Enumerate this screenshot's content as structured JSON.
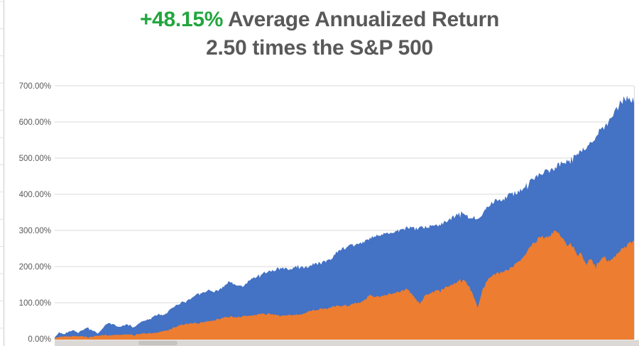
{
  "title": {
    "highlight": "+48.15%",
    "line1_rest": " Average Annualized Return",
    "line2": "2.50 times the S&P 500"
  },
  "colors": {
    "accent_green": "#22A63E",
    "title_gray": "#595959",
    "series_blue": "#4472C4",
    "series_orange": "#ED7D31",
    "gridline": "#D9D9D9",
    "axis_label": "#595959",
    "edge_line": "#C9C9C9",
    "scrollbar_track": "#DBD8D5",
    "scrollbar_thumb": "#C6C3C0"
  },
  "chart_data": {
    "type": "area",
    "title": "+48.15% Average Annualized Return — 2.50 times the S&P 500",
    "legend": "none",
    "grid": "horizontal",
    "x_axis": {
      "tick_labels_visible": false,
      "unit": "percent of chart width (0-100); time labels cropped out"
    },
    "y_axis": {
      "min": 0,
      "max": 700,
      "tick_step": 100,
      "unit": "%",
      "tick_labels": [
        "0.00%",
        "100.00%",
        "200.00%",
        "300.00%",
        "400.00%",
        "500.00%",
        "600.00%",
        "700.00%"
      ]
    },
    "series": [
      {
        "name": "blue-area",
        "color": "#4472C4",
        "points": [
          [
            0,
            3
          ],
          [
            0.7,
            18
          ],
          [
            1.6,
            13
          ],
          [
            2.5,
            22
          ],
          [
            3.3,
            25
          ],
          [
            4,
            17
          ],
          [
            4.9,
            26
          ],
          [
            5.8,
            30
          ],
          [
            6.6,
            23
          ],
          [
            7.5,
            15
          ],
          [
            8.3,
            30
          ],
          [
            9.2,
            44
          ],
          [
            10.2,
            39
          ],
          [
            11.2,
            33
          ],
          [
            12,
            38
          ],
          [
            12.9,
            40
          ],
          [
            13.7,
            32
          ],
          [
            14.6,
            44
          ],
          [
            15.4,
            50
          ],
          [
            16.3,
            55
          ],
          [
            17.2,
            63
          ],
          [
            18,
            68
          ],
          [
            18.9,
            64
          ],
          [
            19.7,
            78
          ],
          [
            20.6,
            88
          ],
          [
            21.4,
            97
          ],
          [
            22.4,
            104
          ],
          [
            23.4,
            110
          ],
          [
            24.5,
            124
          ],
          [
            25.5,
            130
          ],
          [
            26.5,
            134
          ],
          [
            27.3,
            131
          ],
          [
            28.3,
            136
          ],
          [
            29.3,
            144
          ],
          [
            30,
            158
          ],
          [
            30.8,
            152
          ],
          [
            31.6,
            148
          ],
          [
            32.6,
            145
          ],
          [
            33.5,
            160
          ],
          [
            34.3,
            169
          ],
          [
            35.2,
            176
          ],
          [
            36,
            182
          ],
          [
            36.9,
            187
          ],
          [
            37.7,
            190
          ],
          [
            38.6,
            194
          ],
          [
            39.5,
            196
          ],
          [
            40.3,
            192
          ],
          [
            41.2,
            196
          ],
          [
            42,
            201
          ],
          [
            42.9,
            197
          ],
          [
            43.8,
            200
          ],
          [
            44.6,
            207
          ],
          [
            45.5,
            210
          ],
          [
            46.3,
            212
          ],
          [
            47.2,
            219
          ],
          [
            48,
            227
          ],
          [
            48.9,
            244
          ],
          [
            49.8,
            251
          ],
          [
            50.6,
            255
          ],
          [
            51.5,
            258
          ],
          [
            52.3,
            263
          ],
          [
            53.2,
            267
          ],
          [
            54,
            276
          ],
          [
            54.9,
            281
          ],
          [
            55.8,
            284
          ],
          [
            56.6,
            286
          ],
          [
            57.5,
            294
          ],
          [
            58.3,
            298
          ],
          [
            59.2,
            300
          ],
          [
            60,
            303
          ],
          [
            60.9,
            307
          ],
          [
            61.8,
            305
          ],
          [
            62.6,
            303
          ],
          [
            63.5,
            307
          ],
          [
            64.3,
            309
          ],
          [
            65.2,
            313
          ],
          [
            66.1,
            316
          ],
          [
            66.9,
            321
          ],
          [
            67.8,
            326
          ],
          [
            68.6,
            334
          ],
          [
            69.5,
            342
          ],
          [
            70.2,
            349
          ],
          [
            71,
            341
          ],
          [
            71.7,
            333
          ],
          [
            72.3,
            337
          ],
          [
            72.8,
            331
          ],
          [
            73,
            329
          ],
          [
            73.5,
            342
          ],
          [
            74.5,
            362
          ],
          [
            75.2,
            372
          ],
          [
            76,
            385
          ],
          [
            76.7,
            387
          ],
          [
            77.5,
            388
          ],
          [
            78.2,
            395
          ],
          [
            78.9,
            400
          ],
          [
            79.7,
            405
          ],
          [
            80.4,
            413
          ],
          [
            81.1,
            421
          ],
          [
            81.9,
            430
          ],
          [
            82.7,
            445
          ],
          [
            83.5,
            455
          ],
          [
            84.2,
            460
          ],
          [
            84.9,
            470
          ],
          [
            85.5,
            465
          ],
          [
            86.2,
            470
          ],
          [
            86.9,
            480
          ],
          [
            87.6,
            487
          ],
          [
            88.4,
            492
          ],
          [
            89.1,
            500
          ],
          [
            89.8,
            505
          ],
          [
            90.6,
            515
          ],
          [
            91.3,
            522
          ],
          [
            92,
            532
          ],
          [
            92.8,
            545
          ],
          [
            93.5,
            568
          ],
          [
            94.2,
            575
          ],
          [
            95,
            585
          ],
          [
            95.7,
            600
          ],
          [
            96.4,
            618
          ],
          [
            97.2,
            640
          ],
          [
            97.8,
            658
          ],
          [
            98.4,
            662
          ],
          [
            99,
            666
          ],
          [
            99.5,
            660
          ],
          [
            100,
            656
          ]
        ]
      },
      {
        "name": "orange-area",
        "color": "#ED7D31",
        "points": [
          [
            0,
            2
          ],
          [
            1,
            6
          ],
          [
            2,
            8
          ],
          [
            2.9,
            7
          ],
          [
            3.9,
            9
          ],
          [
            4.9,
            7
          ],
          [
            5.9,
            5
          ],
          [
            6.9,
            7
          ],
          [
            7.8,
            9
          ],
          [
            8.9,
            11
          ],
          [
            9.9,
            10
          ],
          [
            10.9,
            12
          ],
          [
            11.9,
            11
          ],
          [
            12.9,
            13
          ],
          [
            13.8,
            12
          ],
          [
            14.8,
            14
          ],
          [
            15.8,
            15
          ],
          [
            16.8,
            16
          ],
          [
            17.8,
            18
          ],
          [
            18.8,
            21
          ],
          [
            19.7,
            25
          ],
          [
            20.7,
            32
          ],
          [
            21.7,
            38
          ],
          [
            22.7,
            41
          ],
          [
            23.7,
            43
          ],
          [
            24.6,
            43
          ],
          [
            25.6,
            46
          ],
          [
            26.6,
            50
          ],
          [
            27.6,
            52
          ],
          [
            28.6,
            56
          ],
          [
            29.5,
            60
          ],
          [
            30.5,
            62
          ],
          [
            31.5,
            60
          ],
          [
            32.5,
            62
          ],
          [
            33.5,
            64
          ],
          [
            34.4,
            66
          ],
          [
            35.4,
            69
          ],
          [
            36.4,
            68
          ],
          [
            37.4,
            69
          ],
          [
            38.4,
            66
          ],
          [
            39.3,
            64
          ],
          [
            40.3,
            65
          ],
          [
            41.3,
            66
          ],
          [
            42.3,
            67
          ],
          [
            43.3,
            74
          ],
          [
            44.2,
            77
          ],
          [
            45.2,
            81
          ],
          [
            46.2,
            84
          ],
          [
            47.2,
            87
          ],
          [
            48.2,
            89
          ],
          [
            49.1,
            91
          ],
          [
            50.1,
            93
          ],
          [
            51.1,
            95
          ],
          [
            52.1,
            98
          ],
          [
            53.1,
            102
          ],
          [
            53.8,
            112
          ],
          [
            54.4,
            122
          ],
          [
            55,
            115
          ],
          [
            55.8,
            117
          ],
          [
            56.5,
            120
          ],
          [
            57.2,
            123
          ],
          [
            58,
            126
          ],
          [
            58.7,
            128
          ],
          [
            59.4,
            130
          ],
          [
            60.2,
            134
          ],
          [
            60.9,
            137
          ],
          [
            61.6,
            125
          ],
          [
            62.4,
            108
          ],
          [
            63,
            97
          ],
          [
            63.6,
            112
          ],
          [
            64.2,
            124
          ],
          [
            65,
            128
          ],
          [
            65.7,
            131
          ],
          [
            66.4,
            135
          ],
          [
            67.2,
            140
          ],
          [
            67.9,
            145
          ],
          [
            68.6,
            150
          ],
          [
            69.4,
            158
          ],
          [
            70.1,
            164
          ],
          [
            70.8,
            160
          ],
          [
            71.6,
            145
          ],
          [
            72.2,
            120
          ],
          [
            72.7,
            100
          ],
          [
            73,
            88
          ],
          [
            73.4,
            110
          ],
          [
            73.9,
            140
          ],
          [
            74.5,
            158
          ],
          [
            75.1,
            172
          ],
          [
            75.9,
            178
          ],
          [
            76.6,
            182
          ],
          [
            77.3,
            185
          ],
          [
            78.1,
            190
          ],
          [
            78.8,
            198
          ],
          [
            79.5,
            208
          ],
          [
            80.3,
            218
          ],
          [
            81,
            228
          ],
          [
            81.7,
            250
          ],
          [
            82.5,
            262
          ],
          [
            83.2,
            275
          ],
          [
            83.9,
            286
          ],
          [
            84.7,
            277
          ],
          [
            85.3,
            282
          ],
          [
            85.9,
            292
          ],
          [
            86.5,
            300
          ],
          [
            87.1,
            288
          ],
          [
            87.7,
            277
          ],
          [
            88.4,
            258
          ],
          [
            89,
            262
          ],
          [
            89.6,
            256
          ],
          [
            90.2,
            230
          ],
          [
            90.8,
            240
          ],
          [
            91.4,
            215
          ],
          [
            91.9,
            205
          ],
          [
            92.4,
            222
          ],
          [
            92.9,
            210
          ],
          [
            93.4,
            202
          ],
          [
            93.9,
            215
          ],
          [
            94.4,
            220
          ],
          [
            94.9,
            228
          ],
          [
            95.3,
            218
          ],
          [
            95.8,
            213
          ],
          [
            96.3,
            225
          ],
          [
            96.8,
            230
          ],
          [
            97.3,
            240
          ],
          [
            97.8,
            247
          ],
          [
            98.3,
            252
          ],
          [
            98.8,
            258
          ],
          [
            99.3,
            263
          ],
          [
            99.6,
            268
          ],
          [
            100,
            270
          ]
        ]
      }
    ]
  }
}
